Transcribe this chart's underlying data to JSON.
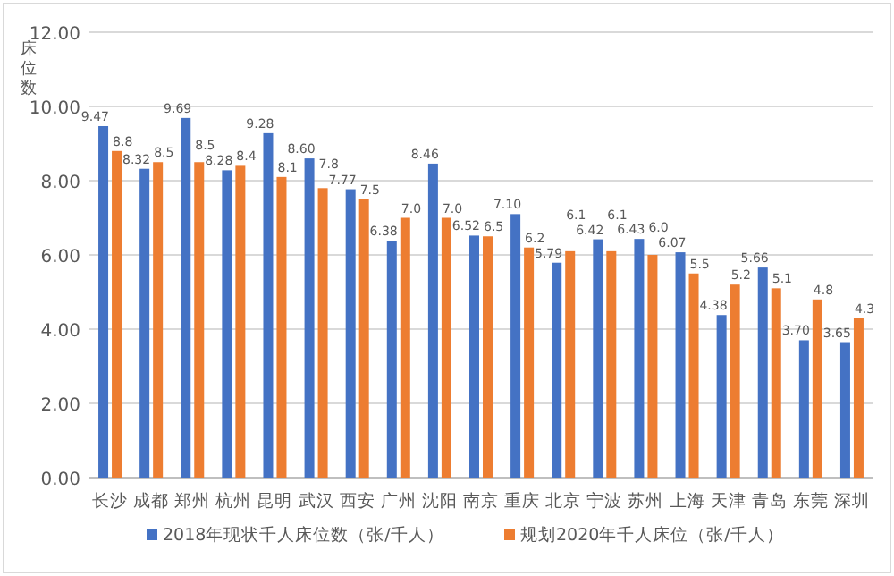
{
  "chart_data": {
    "type": "bar",
    "ylabel": "床位数",
    "categories": [
      "长沙",
      "成都",
      "郑州",
      "杭州",
      "昆明",
      "武汉",
      "西安",
      "广州",
      "沈阳",
      "南京",
      "重庆",
      "北京",
      "宁波",
      "苏州",
      "上海",
      "天津",
      "青岛",
      "东莞",
      "深圳"
    ],
    "series": [
      {
        "name": "2018年现状千人床位数（张/千人）",
        "color": "#4472c4",
        "values": [
          9.47,
          8.32,
          9.69,
          8.28,
          9.28,
          8.6,
          7.77,
          6.38,
          8.46,
          6.52,
          7.1,
          5.79,
          6.42,
          6.43,
          6.07,
          4.38,
          5.66,
          3.7,
          3.65
        ],
        "value_labels": [
          "9.47",
          "8.32",
          "9.69",
          "8.28",
          "9.28",
          "8.60",
          "7.77",
          "6.38",
          "8.46",
          "6.52",
          "7.10",
          "5.79",
          "6.42",
          "6.43",
          "6.07",
          "4.38",
          "5.66",
          "3.70",
          "3.65"
        ]
      },
      {
        "name": "规划2020年千人床位（张/千人）",
        "color": "#ed7d31",
        "values": [
          8.8,
          8.5,
          8.5,
          8.4,
          8.1,
          7.8,
          7.5,
          7.0,
          7.0,
          6.5,
          6.2,
          6.1,
          6.1,
          6.0,
          5.5,
          5.2,
          5.1,
          4.8,
          4.3
        ],
        "value_labels": [
          "8.8",
          "8.5",
          "8.5",
          "8.4",
          "8.1",
          "7.8",
          "7.5",
          "7.0",
          "7.0",
          "6.5",
          "6.2",
          "6.1",
          "6.1",
          "6.0",
          "5.5",
          "5.2",
          "5.1",
          "4.8",
          "4.3"
        ]
      }
    ],
    "ylim": [
      0,
      12
    ],
    "yticks": [
      {
        "value": 0,
        "label": "0.00"
      },
      {
        "value": 2,
        "label": "2.00"
      },
      {
        "value": 4,
        "label": "4.00"
      },
      {
        "value": 6,
        "label": "6.00"
      },
      {
        "value": 8,
        "label": "8.00"
      },
      {
        "value": 10,
        "label": "10.00"
      },
      {
        "value": 12,
        "label": "12.00"
      }
    ],
    "grid": "y",
    "legend": "bottom"
  }
}
